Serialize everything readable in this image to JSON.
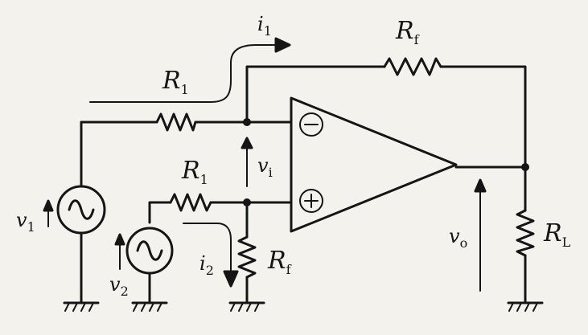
{
  "labels": {
    "i1": {
      "main": "i",
      "sub": "1"
    },
    "Rf_top": {
      "main": "R",
      "sub": "f"
    },
    "R1_top": {
      "main": "R",
      "sub": "1"
    },
    "vi": {
      "main": "v",
      "sub": "i"
    },
    "R1_bottom": {
      "main": "R",
      "sub": "1"
    },
    "v1": {
      "main": "v",
      "sub": "1"
    },
    "v2": {
      "main": "v",
      "sub": "2"
    },
    "i2": {
      "main": "i",
      "sub": "2"
    },
    "Rf_bottom": {
      "main": "R",
      "sub": "f"
    },
    "vo": {
      "main": "v",
      "sub": "o"
    },
    "RL": {
      "main": "R",
      "sub": "L"
    }
  },
  "opamp": {
    "inverting": "⊖",
    "noninverting": "⊕"
  }
}
